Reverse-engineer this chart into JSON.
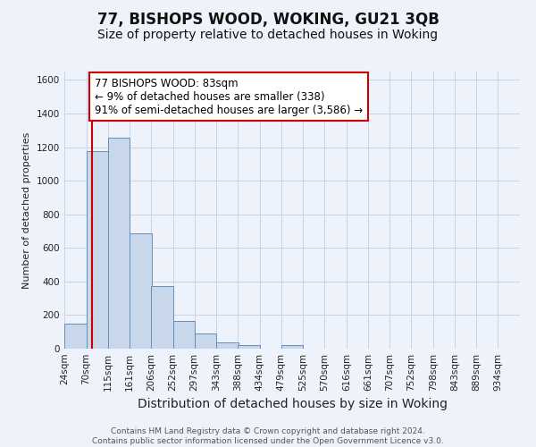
{
  "title": "77, BISHOPS WOOD, WOKING, GU21 3QB",
  "subtitle": "Size of property relative to detached houses in Woking",
  "xlabel": "Distribution of detached houses by size in Woking",
  "ylabel": "Number of detached properties",
  "bin_labels": [
    "24sqm",
    "70sqm",
    "115sqm",
    "161sqm",
    "206sqm",
    "252sqm",
    "297sqm",
    "343sqm",
    "388sqm",
    "434sqm",
    "479sqm",
    "525sqm",
    "570sqm",
    "616sqm",
    "661sqm",
    "707sqm",
    "752sqm",
    "798sqm",
    "843sqm",
    "889sqm",
    "934sqm"
  ],
  "bin_edges": [
    24,
    70,
    115,
    161,
    206,
    252,
    297,
    343,
    388,
    434,
    479,
    525,
    570,
    616,
    661,
    707,
    752,
    798,
    843,
    889,
    934,
    980
  ],
  "bar_heights": [
    150,
    1175,
    1255,
    685,
    375,
    165,
    90,
    35,
    20,
    0,
    20,
    0,
    0,
    0,
    0,
    0,
    0,
    0,
    0,
    0,
    0
  ],
  "bar_color": "#c8d8ea",
  "bar_edge_color": "#6090bb",
  "reference_line_x": 83,
  "reference_line_color": "#cc0000",
  "annotation_line1": "77 BISHOPS WOOD: 83sqm",
  "annotation_line2": "← 9% of detached houses are smaller (338)",
  "annotation_line3": "91% of semi-detached houses are larger (3,586) →",
  "annotation_box_color": "#ffffff",
  "annotation_box_edge_color": "#cc0000",
  "ylim": [
    0,
    1650
  ],
  "yticks": [
    0,
    200,
    400,
    600,
    800,
    1000,
    1200,
    1400,
    1600
  ],
  "grid_color": "#c8d4e8",
  "bg_color": "#eef2fa",
  "footer_text": "Contains HM Land Registry data © Crown copyright and database right 2024.\nContains public sector information licensed under the Open Government Licence v3.0.",
  "title_fontsize": 12,
  "subtitle_fontsize": 10,
  "ylabel_fontsize": 8,
  "xlabel_fontsize": 10,
  "tick_fontsize": 7.5,
  "annotation_fontsize": 8.5,
  "footer_fontsize": 6.5
}
